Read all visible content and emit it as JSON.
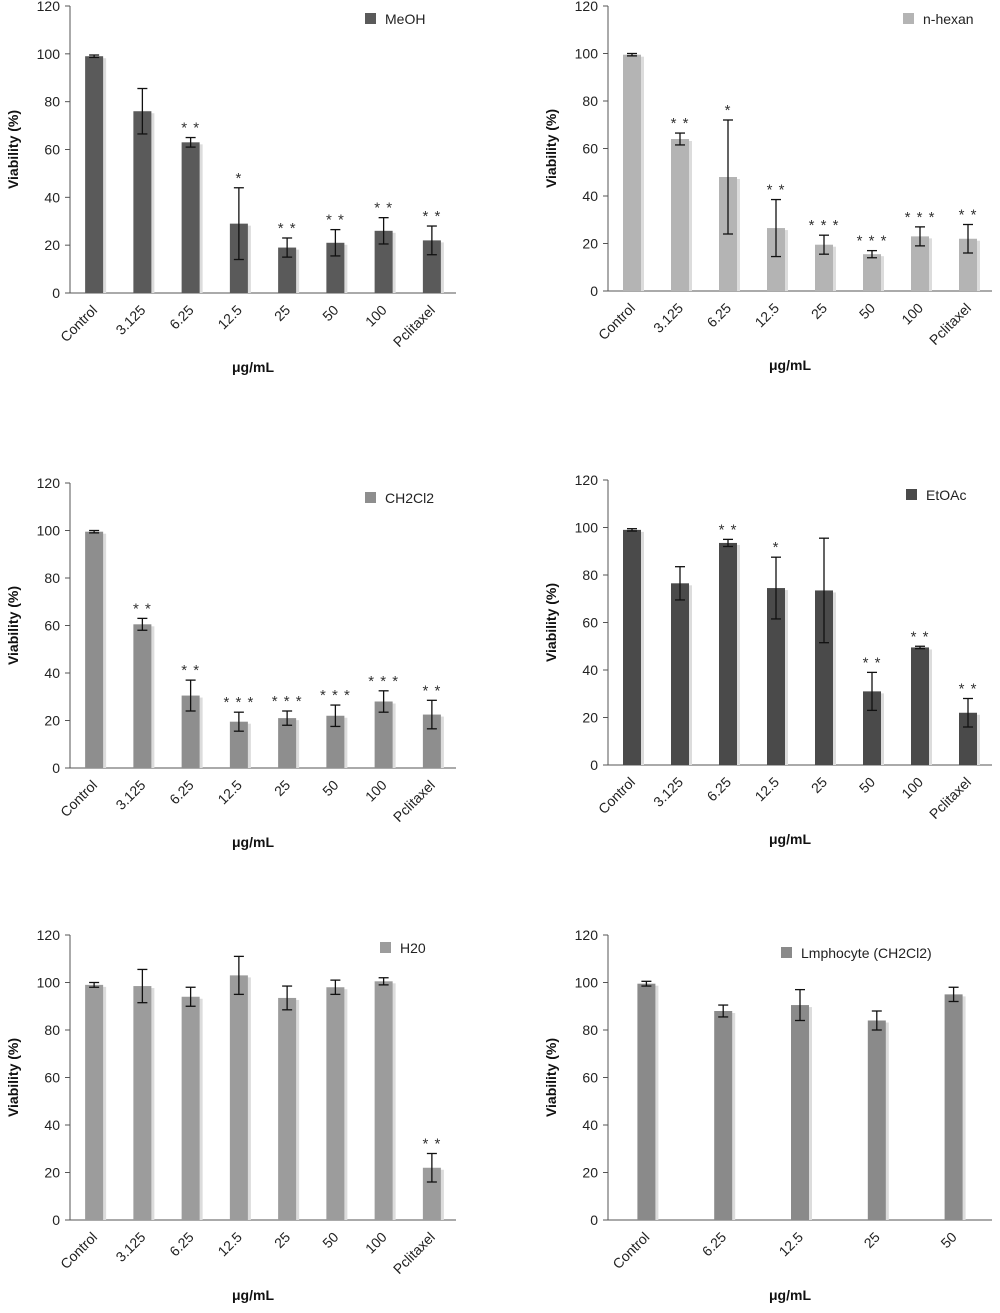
{
  "chart_data": [
    {
      "type": "bar",
      "legend": "MeOH",
      "color": "#5a5a5a",
      "categories": [
        "Control",
        "3.125",
        "6.25",
        "12.5",
        "25",
        "50",
        "100",
        "Pclitaxel"
      ],
      "values": [
        99,
        76,
        63,
        29,
        19,
        21,
        26,
        22
      ],
      "errors": [
        0.5,
        9.5,
        2,
        15,
        4,
        5.5,
        5.5,
        6
      ],
      "significance": [
        "",
        "",
        "**",
        "*",
        "**",
        "**",
        "**",
        "**"
      ],
      "xlabel": "μg/mL",
      "ylabel": "Viability (%)",
      "ylim": [
        0,
        120
      ],
      "yticks": [
        0,
        20,
        40,
        60,
        80,
        100,
        120
      ],
      "legend_position": "top-right",
      "grid": false
    },
    {
      "type": "bar",
      "legend": "n-hexan",
      "color": "#b4b4b4",
      "categories": [
        "Control",
        "3.125",
        "6.25",
        "12.5",
        "25",
        "50",
        "100",
        "Pclitaxel"
      ],
      "values": [
        99.5,
        64,
        48,
        26.5,
        19.5,
        15.5,
        23,
        22
      ],
      "errors": [
        0.5,
        2.5,
        24,
        12,
        4,
        1.5,
        4,
        6
      ],
      "significance": [
        "",
        "**",
        "*",
        "**",
        "***",
        "***",
        "***",
        "**"
      ],
      "xlabel": "μg/mL",
      "ylabel": "Viability (%)",
      "ylim": [
        0,
        120
      ],
      "yticks": [
        0,
        20,
        40,
        60,
        80,
        100,
        120
      ],
      "legend_position": "top-right",
      "grid": false
    },
    {
      "type": "bar",
      "legend": "CH2Cl2",
      "color": "#8e8e8e",
      "categories": [
        "Control",
        "3.125",
        "6.25",
        "12.5",
        "25",
        "50",
        "100",
        "Pclitaxel"
      ],
      "values": [
        99.5,
        60.5,
        30.5,
        19.5,
        21,
        22,
        28,
        22.5
      ],
      "errors": [
        0.5,
        2.5,
        6.5,
        4,
        3,
        4.5,
        4.5,
        6
      ],
      "significance": [
        "",
        "**",
        "**",
        "***",
        "***",
        "***",
        "***",
        "**"
      ],
      "xlabel": "μg/mL",
      "ylabel": "Viability (%)",
      "ylim": [
        0,
        120
      ],
      "yticks": [
        0,
        20,
        40,
        60,
        80,
        100,
        120
      ],
      "legend_position": "top-right",
      "grid": false
    },
    {
      "type": "bar",
      "legend": "EtOAc",
      "color": "#4a4a4a",
      "categories": [
        "Control",
        "3.125",
        "6.25",
        "12.5",
        "25",
        "50",
        "100",
        "Pclitaxel"
      ],
      "values": [
        99,
        76.5,
        93.5,
        74.5,
        73.5,
        31,
        49.5,
        22
      ],
      "errors": [
        0.5,
        7,
        1.5,
        13,
        22,
        8,
        0.5,
        6
      ],
      "significance": [
        "",
        "",
        "**",
        "*",
        "",
        "**",
        "**",
        "**"
      ],
      "xlabel": "μg/mL",
      "ylabel": "Viability (%)",
      "ylim": [
        0,
        120
      ],
      "yticks": [
        0,
        20,
        40,
        60,
        80,
        100,
        120
      ],
      "legend_position": "top-right",
      "grid": false
    },
    {
      "type": "bar",
      "legend": "H20",
      "color": "#9c9c9c",
      "categories": [
        "Control",
        "3.125",
        "6.25",
        "12.5",
        "25",
        "50",
        "100",
        "Pclitaxel"
      ],
      "values": [
        99,
        98.5,
        94,
        103,
        93.5,
        98,
        100.5,
        22
      ],
      "errors": [
        1,
        7,
        4,
        8,
        5,
        3,
        1.5,
        6
      ],
      "significance": [
        "",
        "",
        "",
        "",
        "",
        "",
        "",
        "**"
      ],
      "xlabel": "μg/mL",
      "ylabel": "Viability (%)",
      "ylim": [
        0,
        120
      ],
      "yticks": [
        0,
        20,
        40,
        60,
        80,
        100,
        120
      ],
      "legend_position": "top-right",
      "grid": false
    },
    {
      "type": "bar",
      "legend": "Lmphocyte (CH2Cl2)",
      "color": "#8a8a8a",
      "categories": [
        "Control",
        "6.25",
        "12.5",
        "25",
        "50"
      ],
      "values": [
        99.5,
        88,
        90.5,
        84,
        95
      ],
      "errors": [
        1,
        2.5,
        6.5,
        4,
        3
      ],
      "significance": [
        "",
        "",
        "",
        "",
        ""
      ],
      "xlabel": "μg/mL",
      "ylabel": "Viability (%)",
      "ylim": [
        0,
        120
      ],
      "yticks": [
        0,
        20,
        40,
        60,
        80,
        100,
        120
      ],
      "legend_position": "top-right",
      "grid": false
    }
  ]
}
